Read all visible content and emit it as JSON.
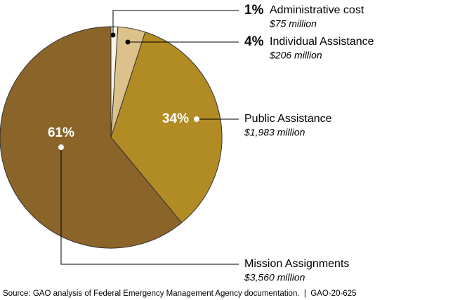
{
  "chart_data": {
    "type": "pie",
    "categories": [
      "Administrative cost",
      "Individual Assistance",
      "Public Assistance",
      "Mission Assignments"
    ],
    "values": [
      1,
      4,
      34,
      61
    ],
    "value_labels": [
      "1%",
      "4%",
      "34%",
      "61%"
    ],
    "amounts": [
      "$75 million",
      "$206 million",
      "$1,983 million",
      "$3,560 million"
    ],
    "colors": [
      "#f7f3ea",
      "#dcc18a",
      "#b18c24",
      "#8a6429"
    ],
    "source": "Source: GAO analysis of Federal Emergency Management Agency documentation.  |  GAO-20-625"
  }
}
